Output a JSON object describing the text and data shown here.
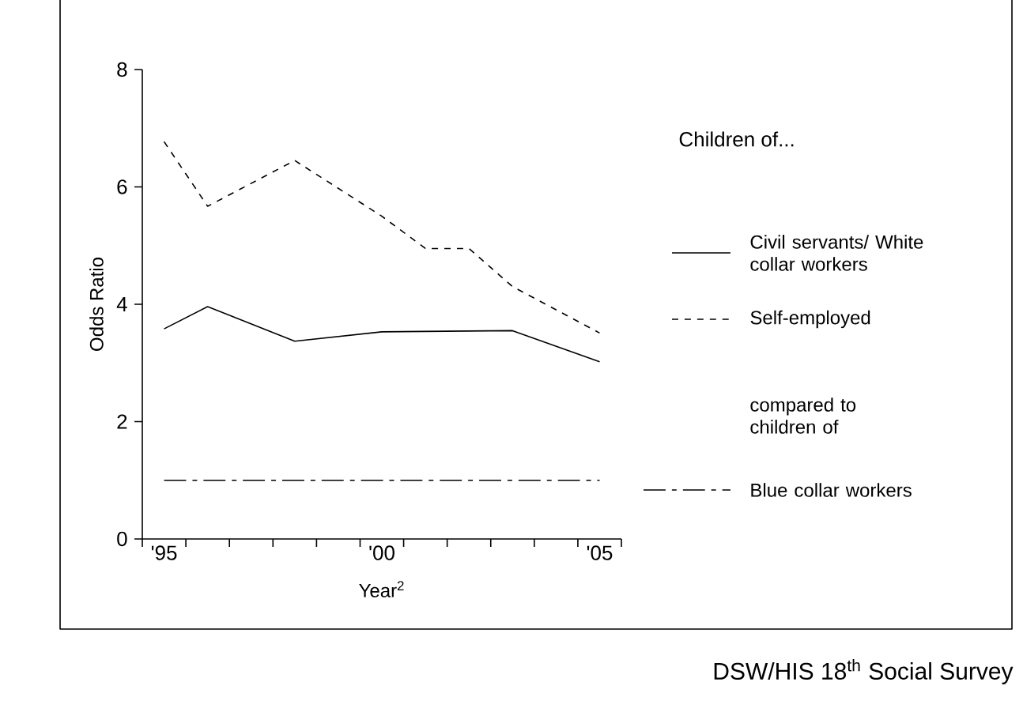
{
  "chart_data": {
    "type": "line",
    "xlabel": "Year$^{2}$",
    "ylabel": "Odds Ratio",
    "legend_title": "Children of...",
    "legend": "right",
    "annotations": [
      "compared to children of",
      "DSW/HIS 18$^{th}$ Social Survey"
    ],
    "categories": [
      "'95",
      null,
      null,
      null,
      null,
      "'00",
      null,
      null,
      null,
      null,
      "'05"
    ],
    "ylim": [
      0,
      8
    ],
    "yticks": [
      0,
      2,
      4,
      6,
      8
    ],
    "grid": false,
    "marker": "none",
    "series": [
      {
        "name": "Civil servants/ White collar workers",
        "color": "#000000",
        "line_style": "solid",
        "values": [
          3.58,
          3.96,
          null,
          3.37,
          null,
          3.53,
          null,
          null,
          3.55,
          null,
          3.02
        ]
      },
      {
        "name": "Self-employed",
        "color": "#000000",
        "line_style": "dashed",
        "values": [
          6.77,
          5.67,
          null,
          6.45,
          null,
          5.5,
          4.95,
          4.95,
          4.3,
          null,
          3.51
        ]
      },
      {
        "name": "Blue collar workers",
        "color": "#000000",
        "line_style": "dashdot",
        "values": [
          1.0,
          null,
          null,
          null,
          null,
          null,
          null,
          null,
          null,
          null,
          1.0
        ]
      }
    ]
  }
}
